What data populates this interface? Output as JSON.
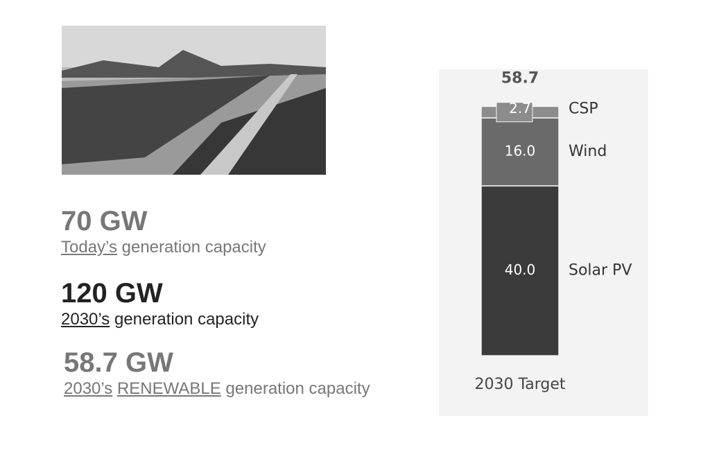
{
  "stats": [
    {
      "figure": "70 GW",
      "caption": [
        "Today’s",
        "generation capacity"
      ]
    },
    {
      "figure": "120 GW",
      "caption": [
        "2030’s",
        "generation capacity"
      ]
    },
    {
      "figure": "58.7 GW",
      "caption": [
        "2030’s",
        "RENEWABLE",
        "generation capacity"
      ]
    }
  ],
  "chart_data": {
    "type": "stacked-bar",
    "categories": [
      "2030 Target"
    ],
    "total": 58.7,
    "series": [
      {
        "name": "Solar PV",
        "color": "#3b3b3b",
        "values": [
          40.0
        ],
        "value_labels": [
          "40.0"
        ]
      },
      {
        "name": "Wind",
        "color": "#6a6a6a",
        "values": [
          16.0
        ],
        "value_labels": [
          "16.0"
        ]
      },
      {
        "name": "CSP",
        "color": "#8c8c8c",
        "values": [
          2.7
        ],
        "value_labels": [
          "2.7"
        ]
      }
    ]
  }
}
